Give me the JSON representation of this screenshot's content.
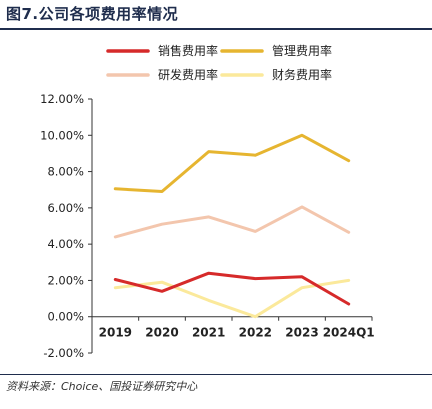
{
  "figure_title": "图7.公司各项费用率情况",
  "source_note": "资料来源：Choice、国投证券研究中心",
  "chart_data": {
    "type": "line",
    "categories": [
      "2019",
      "2020",
      "2021",
      "2022",
      "2023",
      "2024Q1"
    ],
    "ylim": [
      -2,
      12
    ],
    "yticks": [
      "-2.00%",
      "0.00%",
      "2.00%",
      "4.00%",
      "6.00%",
      "8.00%",
      "10.00%",
      "12.00%"
    ],
    "ytick_values": [
      -2,
      0,
      2,
      4,
      6,
      8,
      10,
      12
    ],
    "grid": false,
    "legend_position": "top",
    "series": [
      {
        "name": "销售费用率",
        "color": "#d62a2a",
        "values": [
          2.05,
          1.4,
          2.4,
          2.1,
          2.2,
          0.7
        ]
      },
      {
        "name": "管理费用率",
        "color": "#e6b530",
        "values": [
          7.05,
          6.9,
          9.1,
          8.9,
          10.0,
          8.6
        ]
      },
      {
        "name": "研发费用率",
        "color": "#f3c6ad",
        "values": [
          4.4,
          5.1,
          5.5,
          4.7,
          6.05,
          4.65
        ]
      },
      {
        "name": "财务费用率",
        "color": "#fbe99b",
        "values": [
          1.6,
          1.9,
          0.9,
          0.0,
          1.6,
          2.0
        ]
      }
    ]
  }
}
